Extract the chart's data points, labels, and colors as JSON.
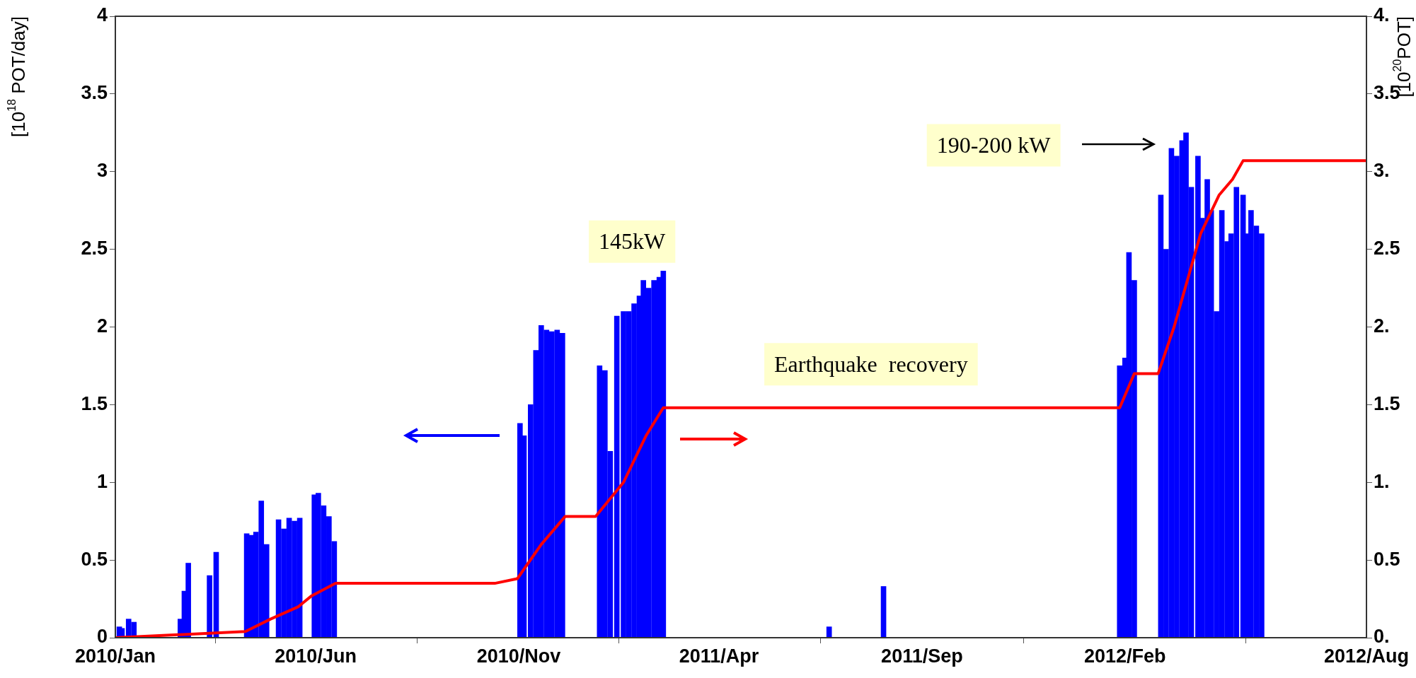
{
  "chart_data": {
    "type": "bar",
    "ylabel": "[10$^{18}$ POT/day]",
    "y2label": "[10$^{20}$POT]",
    "xlim": [
      "2010-01-01",
      "2012-08-01"
    ],
    "xticks": [
      {
        "value": "2010-01-01",
        "label": "2010/Jan"
      },
      {
        "value": "2010-06-01",
        "label": "2010/Jun"
      },
      {
        "value": "2010-11-01",
        "label": "2010/Nov"
      },
      {
        "value": "2011-04-01",
        "label": "2011/Apr"
      },
      {
        "value": "2011-09-01",
        "label": "2011/Sep"
      },
      {
        "value": "2012-02-01",
        "label": "2012/Feb"
      },
      {
        "value": "2012-08-01",
        "label": "2012/Aug"
      }
    ],
    "ylim": [
      0,
      4
    ],
    "yticks": [
      0,
      0.5,
      1,
      1.5,
      2,
      2.5,
      3,
      3.5,
      4
    ],
    "y2lim": [
      0,
      4
    ],
    "y2ticks": [
      {
        "value": 0,
        "label": "0."
      },
      {
        "value": 0.5,
        "label": "0.5"
      },
      {
        "value": 1,
        "label": "1."
      },
      {
        "value": 1.5,
        "label": "1.5"
      },
      {
        "value": 2,
        "label": "2."
      },
      {
        "value": 2.5,
        "label": "2.5"
      },
      {
        "value": 3,
        "label": "3."
      },
      {
        "value": 3.5,
        "label": "3.5"
      },
      {
        "value": 4,
        "label": "4."
      }
    ],
    "series": [
      {
        "color": "#0000ff",
        "x": [
          "2010-01-04",
          "2010-01-06",
          "2010-01-11",
          "2010-01-15",
          "2010-02-19",
          "2010-02-22",
          "2010-02-25",
          "2010-03-13",
          "2010-03-18",
          "2010-04-10",
          "2010-04-13",
          "2010-04-17",
          "2010-04-21",
          "2010-04-25",
          "2010-05-04",
          "2010-05-08",
          "2010-05-12",
          "2010-05-16",
          "2010-05-20",
          "2010-05-31",
          "2010-06-03",
          "2010-06-07",
          "2010-06-11",
          "2010-06-15",
          "2010-11-02",
          "2010-11-05",
          "2010-11-10",
          "2010-11-14",
          "2010-11-18",
          "2010-11-22",
          "2010-11-26",
          "2010-11-30",
          "2010-12-04",
          "2011-01-01",
          "2011-01-05",
          "2011-01-09",
          "2011-01-14",
          "2011-01-19",
          "2011-01-23",
          "2011-01-27",
          "2011-01-31",
          "2011-02-03",
          "2011-02-07",
          "2011-02-11",
          "2011-02-15",
          "2011-02-18",
          "2011-06-23",
          "2011-08-03",
          "2012-01-28",
          "2012-02-01",
          "2012-02-04",
          "2012-02-08",
          "2012-02-28",
          "2012-03-03",
          "2012-03-07",
          "2012-03-11",
          "2012-03-15",
          "2012-03-18",
          "2012-03-22",
          "2012-03-27",
          "2012-03-30",
          "2012-04-03",
          "2012-04-06",
          "2012-04-10",
          "2012-04-14",
          "2012-04-18",
          "2012-04-21",
          "2012-04-25",
          "2012-04-30",
          "2012-05-03",
          "2012-05-06",
          "2012-05-10",
          "2012-05-14"
        ],
        "values": [
          0.07,
          0.06,
          0.12,
          0.1,
          0.12,
          0.3,
          0.48,
          0.4,
          0.55,
          0.67,
          0.66,
          0.68,
          0.88,
          0.6,
          0.76,
          0.7,
          0.77,
          0.75,
          0.77,
          0.92,
          0.93,
          0.85,
          0.78,
          0.62,
          1.38,
          1.3,
          1.5,
          1.85,
          2.01,
          1.98,
          1.97,
          1.98,
          1.96,
          1.75,
          1.72,
          1.2,
          2.07,
          2.1,
          2.1,
          2.15,
          2.2,
          2.3,
          2.25,
          2.3,
          2.32,
          2.36,
          0.07,
          0.33,
          1.75,
          1.8,
          2.48,
          2.3,
          2.85,
          2.5,
          3.15,
          3.1,
          3.2,
          3.25,
          2.9,
          3.1,
          2.7,
          2.95,
          2.75,
          2.1,
          2.75,
          2.55,
          2.6,
          2.9,
          2.85,
          2.6,
          2.75,
          2.65,
          2.6
        ]
      },
      {
        "type": "line",
        "axis": "y2",
        "color": "#ff0000",
        "x": [
          "2010-01-01",
          "2010-04-09",
          "2010-04-28",
          "2010-05-19",
          "2010-05-29",
          "2010-06-16",
          "2010-10-14",
          "2010-10-31",
          "2010-11-18",
          "2010-12-06",
          "2010-12-29",
          "2011-01-19",
          "2011-02-05",
          "2011-02-18",
          "2011-08-18",
          "2012-01-28",
          "2012-02-08",
          "2012-02-26",
          "2012-03-09",
          "2012-03-29",
          "2012-04-12",
          "2012-04-22",
          "2012-04-30",
          "2012-08-01"
        ],
        "values": [
          0,
          0.04,
          0.12,
          0.2,
          0.27,
          0.35,
          0.35,
          0.38,
          0.6,
          0.78,
          0.78,
          1.0,
          1.3,
          1.48,
          1.48,
          1.48,
          1.7,
          1.7,
          2.0,
          2.6,
          2.85,
          2.95,
          3.07,
          3.07
        ]
      }
    ],
    "annotations": [
      "145kW",
      "Earthquake  recovery",
      "190-200 kW"
    ]
  }
}
